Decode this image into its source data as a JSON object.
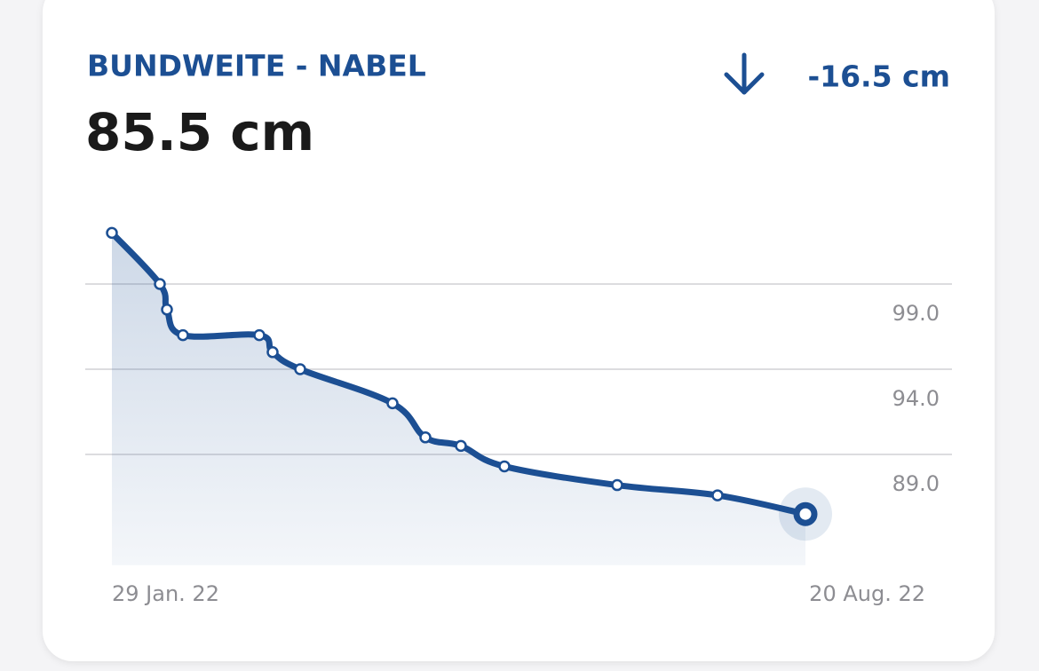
{
  "chart_data": {
    "type": "line",
    "title": "BUNDWEITE - NABEL",
    "subtitle": "85.5 cm",
    "annotation": "-16.5 cm",
    "categories": [
      "29 Jan. 22",
      null,
      null,
      null,
      null,
      null,
      null,
      null,
      null,
      null,
      null,
      null,
      null,
      "20 Aug. 22"
    ],
    "values": [
      102.0,
      99.0,
      97.5,
      96.0,
      96.0,
      95.0,
      94.0,
      92.0,
      90.0,
      89.5,
      88.3,
      87.2,
      86.6,
      85.5
    ],
    "color": "#1c4f93",
    "ylim": [
      82.5,
      102.5
    ],
    "yticks": [
      {
        "value": 89,
        "label": "89.0"
      },
      {
        "value": 94,
        "label": "94.0"
      },
      {
        "value": 99,
        "label": "99.0"
      }
    ],
    "grid": true
  }
}
